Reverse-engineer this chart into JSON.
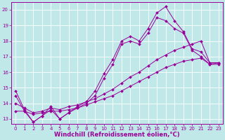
{
  "xlabel": "Windchill (Refroidissement éolien,°C)",
  "bg_color": "#c0e8e8",
  "line_color": "#990099",
  "grid_color": "#ffffff",
  "xlim": [
    -0.5,
    23.5
  ],
  "ylim": [
    12.7,
    20.5
  ],
  "yticks": [
    13,
    14,
    15,
    16,
    17,
    18,
    19,
    20
  ],
  "xticks": [
    0,
    1,
    2,
    3,
    4,
    5,
    6,
    7,
    8,
    9,
    10,
    11,
    12,
    13,
    14,
    15,
    16,
    17,
    18,
    19,
    20,
    21,
    22,
    23
  ],
  "series": [
    {
      "x": [
        0,
        1,
        2,
        3,
        4,
        5,
        6,
        7,
        8,
        9,
        10,
        11,
        12,
        13,
        14,
        15,
        16,
        17,
        18,
        19,
        20,
        21,
        22,
        23
      ],
      "y": [
        14.8,
        13.6,
        12.8,
        13.2,
        13.8,
        13.0,
        13.4,
        13.8,
        14.1,
        14.8,
        15.9,
        16.8,
        18.0,
        18.3,
        18.0,
        18.8,
        19.8,
        20.2,
        19.3,
        18.6,
        17.5,
        17.3,
        16.6,
        16.6
      ]
    },
    {
      "x": [
        0,
        1,
        2,
        3,
        4,
        5,
        6,
        7,
        8,
        9,
        10,
        11,
        12,
        13,
        14,
        15,
        16,
        17,
        18,
        19,
        20,
        21,
        22,
        23
      ],
      "y": [
        14.5,
        13.5,
        12.8,
        13.2,
        13.6,
        13.0,
        13.4,
        13.7,
        14.0,
        14.5,
        15.6,
        16.5,
        17.8,
        18.0,
        17.8,
        18.5,
        19.5,
        19.3,
        18.8,
        18.5,
        17.4,
        17.0,
        16.5,
        16.6
      ]
    },
    {
      "x": [
        0,
        1,
        2,
        3,
        4,
        5,
        6,
        7,
        8,
        9,
        10,
        11,
        12,
        13,
        14,
        15,
        16,
        17,
        18,
        19,
        20,
        21,
        22,
        23
      ],
      "y": [
        13.5,
        13.5,
        13.3,
        13.4,
        13.5,
        13.5,
        13.6,
        13.7,
        13.9,
        14.1,
        14.3,
        14.5,
        14.8,
        15.1,
        15.4,
        15.7,
        16.0,
        16.3,
        16.5,
        16.7,
        16.8,
        16.9,
        16.5,
        16.5
      ]
    },
    {
      "x": [
        0,
        1,
        2,
        3,
        4,
        5,
        6,
        7,
        8,
        9,
        10,
        11,
        12,
        13,
        14,
        15,
        16,
        17,
        18,
        19,
        20,
        21,
        22,
        23
      ],
      "y": [
        14.0,
        13.7,
        13.4,
        13.5,
        13.7,
        13.6,
        13.8,
        13.9,
        14.1,
        14.3,
        14.6,
        14.9,
        15.3,
        15.7,
        16.0,
        16.4,
        16.8,
        17.1,
        17.4,
        17.6,
        17.8,
        18.0,
        16.6,
        16.6
      ]
    }
  ],
  "marker": "D",
  "marker_size": 2.0,
  "linewidth": 0.7,
  "xlabel_fontsize": 6.0,
  "tick_fontsize": 5.0
}
